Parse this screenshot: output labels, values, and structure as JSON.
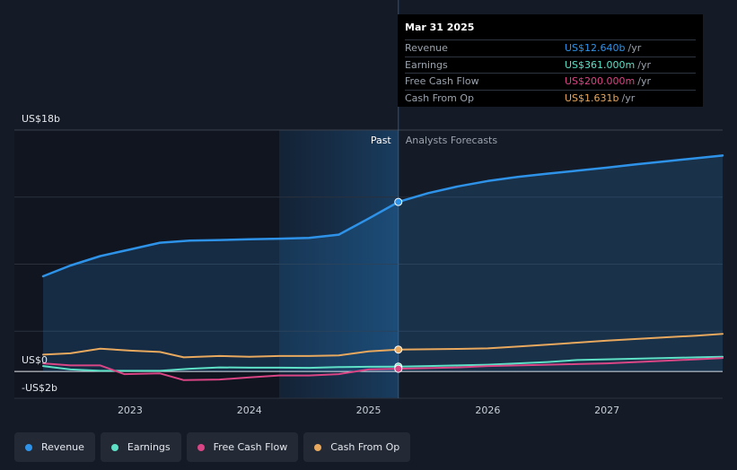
{
  "tooltip": {
    "date": "Mar 31 2025",
    "rows": [
      {
        "label": "Revenue",
        "value": "US$12.640b",
        "unit": "/yr",
        "color": "#2e93e8"
      },
      {
        "label": "Earnings",
        "value": "US$361.000m",
        "unit": "/yr",
        "color": "#5ee0c6"
      },
      {
        "label": "Free Cash Flow",
        "value": "US$200.000m",
        "unit": "/yr",
        "color": "#d94585"
      },
      {
        "label": "Cash From Op",
        "value": "US$1.631b",
        "unit": "/yr",
        "color": "#e8a85e"
      }
    ]
  },
  "legend": [
    {
      "label": "Revenue",
      "color": "#2e93e8"
    },
    {
      "label": "Earnings",
      "color": "#5ee0c6"
    },
    {
      "label": "Free Cash Flow",
      "color": "#d94585"
    },
    {
      "label": "Cash From Op",
      "color": "#e8a85e"
    }
  ],
  "chart_data": {
    "type": "line",
    "y_unit": "US$ billions",
    "ylim": [
      -2,
      18
    ],
    "xlim": [
      2022.27,
      2027.97
    ],
    "y_tick_labels": [
      {
        "value": 18,
        "label": "US$18b"
      },
      {
        "value": 0,
        "label": "US$0"
      },
      {
        "value": -2,
        "label": "-US$2b"
      }
    ],
    "x_ticks": [
      {
        "value": 2023,
        "label": "2023"
      },
      {
        "value": 2024,
        "label": "2024"
      },
      {
        "value": 2025,
        "label": "2025"
      },
      {
        "value": 2026,
        "label": "2026"
      },
      {
        "value": 2027,
        "label": "2027"
      }
    ],
    "past_label": "Past",
    "forecast_label": "Analysts Forecasts",
    "divider_x": 2025.25,
    "highlight_start": 2024.25,
    "grid": true,
    "series": [
      {
        "name": "Revenue",
        "color": "#2e93e8",
        "fill": true,
        "points": [
          [
            2022.27,
            7.1
          ],
          [
            2022.5,
            7.9
          ],
          [
            2022.75,
            8.6
          ],
          [
            2023.0,
            9.1
          ],
          [
            2023.25,
            9.6
          ],
          [
            2023.5,
            9.75
          ],
          [
            2023.75,
            9.8
          ],
          [
            2024.0,
            9.85
          ],
          [
            2024.25,
            9.9
          ],
          [
            2024.5,
            9.95
          ],
          [
            2024.75,
            10.2
          ],
          [
            2025.0,
            11.4
          ],
          [
            2025.25,
            12.64
          ],
          [
            2025.5,
            13.3
          ],
          [
            2025.75,
            13.8
          ],
          [
            2026.0,
            14.2
          ],
          [
            2026.25,
            14.5
          ],
          [
            2026.5,
            14.75
          ],
          [
            2026.75,
            14.97
          ],
          [
            2027.0,
            15.2
          ],
          [
            2027.25,
            15.45
          ],
          [
            2027.5,
            15.68
          ],
          [
            2027.75,
            15.9
          ],
          [
            2027.97,
            16.1
          ]
        ]
      },
      {
        "name": "Earnings",
        "color": "#5ee0c6",
        "fill": false,
        "points": [
          [
            2022.27,
            0.4
          ],
          [
            2022.5,
            0.15
          ],
          [
            2022.75,
            0.05
          ],
          [
            2023.0,
            0.05
          ],
          [
            2023.25,
            0.05
          ],
          [
            2023.5,
            0.2
          ],
          [
            2023.75,
            0.3
          ],
          [
            2024.0,
            0.28
          ],
          [
            2024.25,
            0.28
          ],
          [
            2024.5,
            0.27
          ],
          [
            2024.75,
            0.32
          ],
          [
            2025.0,
            0.35
          ],
          [
            2025.25,
            0.361
          ],
          [
            2025.5,
            0.4
          ],
          [
            2025.75,
            0.45
          ],
          [
            2026.0,
            0.5
          ],
          [
            2026.25,
            0.6
          ],
          [
            2026.5,
            0.7
          ],
          [
            2026.75,
            0.85
          ],
          [
            2027.0,
            0.9
          ],
          [
            2027.25,
            0.95
          ],
          [
            2027.5,
            1.0
          ],
          [
            2027.75,
            1.05
          ],
          [
            2027.97,
            1.1
          ]
        ]
      },
      {
        "name": "Free Cash Flow",
        "color": "#d94585",
        "fill": false,
        "points": [
          [
            2022.27,
            0.6
          ],
          [
            2022.5,
            0.45
          ],
          [
            2022.75,
            0.45
          ],
          [
            2022.95,
            -0.2
          ],
          [
            2023.25,
            -0.15
          ],
          [
            2023.45,
            -0.65
          ],
          [
            2023.75,
            -0.6
          ],
          [
            2024.0,
            -0.45
          ],
          [
            2024.25,
            -0.3
          ],
          [
            2024.5,
            -0.3
          ],
          [
            2024.75,
            -0.2
          ],
          [
            2025.0,
            0.15
          ],
          [
            2025.25,
            0.2
          ],
          [
            2025.5,
            0.25
          ],
          [
            2025.75,
            0.3
          ],
          [
            2026.0,
            0.4
          ],
          [
            2026.25,
            0.45
          ],
          [
            2026.5,
            0.5
          ],
          [
            2026.75,
            0.55
          ],
          [
            2027.0,
            0.6
          ],
          [
            2027.25,
            0.7
          ],
          [
            2027.5,
            0.8
          ],
          [
            2027.75,
            0.9
          ],
          [
            2027.97,
            1.0
          ]
        ]
      },
      {
        "name": "Cash From Op",
        "color": "#e8a85e",
        "fill": false,
        "points": [
          [
            2022.27,
            1.25
          ],
          [
            2022.5,
            1.35
          ],
          [
            2022.75,
            1.7
          ],
          [
            2023.0,
            1.55
          ],
          [
            2023.25,
            1.45
          ],
          [
            2023.45,
            1.05
          ],
          [
            2023.75,
            1.15
          ],
          [
            2024.0,
            1.1
          ],
          [
            2024.25,
            1.15
          ],
          [
            2024.5,
            1.15
          ],
          [
            2024.75,
            1.2
          ],
          [
            2025.0,
            1.5
          ],
          [
            2025.25,
            1.631
          ],
          [
            2025.5,
            1.65
          ],
          [
            2025.75,
            1.68
          ],
          [
            2026.0,
            1.72
          ],
          [
            2026.25,
            1.85
          ],
          [
            2026.5,
            2.0
          ],
          [
            2026.75,
            2.15
          ],
          [
            2027.0,
            2.3
          ],
          [
            2027.25,
            2.42
          ],
          [
            2027.5,
            2.55
          ],
          [
            2027.75,
            2.67
          ],
          [
            2027.97,
            2.8
          ]
        ]
      }
    ]
  }
}
